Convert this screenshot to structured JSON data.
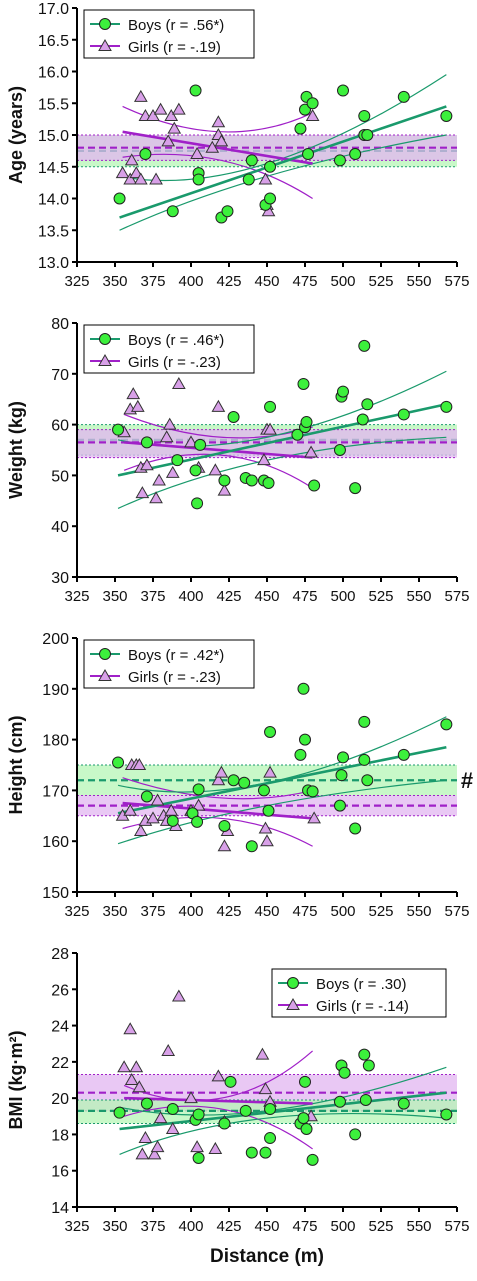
{
  "colors": {
    "boys": "#1a9a6c",
    "boys_fill": "#3cf03c",
    "girls": "#a020c8",
    "girls_fill": "#d8a0e8",
    "band_green": "#b6f5b6",
    "band_purple": "#e2b5f0"
  },
  "x_axis_label": "Distance (m)",
  "chart_data": [
    {
      "type": "scatter",
      "ylabel": "Age (years)",
      "xlim": [
        325,
        575
      ],
      "ylim": [
        13.0,
        17.0
      ],
      "xticks": [
        "325",
        "350",
        "375",
        "400",
        "425",
        "450",
        "475",
        "500",
        "525",
        "550",
        "575"
      ],
      "yticks": [
        "13.0",
        "13.5",
        "14.0",
        "14.5",
        "15.0",
        "15.5",
        "16.0",
        "16.5",
        "17.0"
      ],
      "legend": [
        "Boys (r = .56*)",
        "Girls (r = -.19)"
      ],
      "legend_position": "top-left",
      "marker": "",
      "boys_points": [
        [
          353,
          14.0
        ],
        [
          370,
          14.7
        ],
        [
          388,
          13.8
        ],
        [
          403,
          15.7
        ],
        [
          405,
          14.4
        ],
        [
          405,
          14.3
        ],
        [
          420,
          13.7
        ],
        [
          424,
          13.8
        ],
        [
          438,
          14.3
        ],
        [
          440,
          14.6
        ],
        [
          449,
          13.9
        ],
        [
          452,
          14.0
        ],
        [
          452,
          14.5
        ],
        [
          472,
          15.1
        ],
        [
          475,
          15.4
        ],
        [
          476,
          15.6
        ],
        [
          477,
          14.7
        ],
        [
          480,
          15.5
        ],
        [
          498,
          14.6
        ],
        [
          500,
          15.7
        ],
        [
          508,
          14.7
        ],
        [
          514,
          15.3
        ],
        [
          514,
          15.0
        ],
        [
          516,
          15.0
        ],
        [
          540,
          15.6
        ],
        [
          568,
          15.3
        ]
      ],
      "girls_points": [
        [
          355,
          14.4
        ],
        [
          360,
          14.3
        ],
        [
          361,
          14.6
        ],
        [
          364,
          14.4
        ],
        [
          367,
          15.6
        ],
        [
          367,
          14.3
        ],
        [
          370,
          15.3
        ],
        [
          375,
          15.3
        ],
        [
          377,
          14.3
        ],
        [
          380,
          15.4
        ],
        [
          385,
          14.9
        ],
        [
          387,
          15.3
        ],
        [
          389,
          15.1
        ],
        [
          392,
          15.4
        ],
        [
          404,
          14.7
        ],
        [
          414,
          14.8
        ],
        [
          418,
          15.0
        ],
        [
          418,
          15.2
        ],
        [
          420,
          14.9
        ],
        [
          449,
          14.3
        ],
        [
          450,
          13.9
        ],
        [
          451,
          13.8
        ],
        [
          480,
          15.3
        ]
      ],
      "boys_fit": [
        [
          353,
          13.7
        ],
        [
          568,
          15.45
        ]
      ],
      "boys_ci_upper": [
        [
          353,
          14.35
        ],
        [
          450,
          14.55
        ],
        [
          568,
          15.95
        ]
      ],
      "boys_ci_lower": [
        [
          353,
          13.5
        ],
        [
          450,
          14.35
        ],
        [
          568,
          15.0
        ]
      ],
      "girls_fit": [
        [
          355,
          15.05
        ],
        [
          480,
          14.55
        ]
      ],
      "girls_ci_upper": [
        [
          355,
          15.45
        ],
        [
          420,
          15.05
        ],
        [
          480,
          15.35
        ]
      ],
      "girls_ci_lower": [
        [
          355,
          14.65
        ],
        [
          420,
          14.6
        ],
        [
          480,
          14.0
        ]
      ],
      "boys_band": [
        14.5,
        15.0
      ],
      "boys_mean": 14.75,
      "girls_band": [
        14.6,
        15.0
      ],
      "girls_mean": 14.8
    },
    {
      "type": "scatter",
      "ylabel": "Weight (kg)",
      "xlim": [
        325,
        575
      ],
      "ylim": [
        30,
        80
      ],
      "xticks": [
        "325",
        "350",
        "375",
        "400",
        "425",
        "450",
        "475",
        "500",
        "525",
        "550",
        "575"
      ],
      "yticks": [
        "30",
        "40",
        "50",
        "60",
        "70",
        "80"
      ],
      "legend": [
        "Boys (r = .46*)",
        "Girls (r = -.23)"
      ],
      "legend_position": "top-left",
      "marker": "",
      "boys_points": [
        [
          352,
          59.0
        ],
        [
          371,
          56.5
        ],
        [
          391,
          53.0
        ],
        [
          403,
          51.0
        ],
        [
          404,
          44.5
        ],
        [
          406,
          56.0
        ],
        [
          422,
          49.0
        ],
        [
          428,
          61.5
        ],
        [
          436,
          49.5
        ],
        [
          440,
          49.0
        ],
        [
          448,
          49.0
        ],
        [
          451,
          48.5
        ],
        [
          452,
          63.5
        ],
        [
          470,
          58.0
        ],
        [
          474,
          68.0
        ],
        [
          475,
          59.5
        ],
        [
          476,
          60.5
        ],
        [
          481,
          48.0
        ],
        [
          498,
          55.0
        ],
        [
          499,
          65.5
        ],
        [
          500,
          66.5
        ],
        [
          508,
          47.5
        ],
        [
          513,
          61.0
        ],
        [
          514,
          75.5
        ],
        [
          516,
          64.0
        ],
        [
          540,
          62.0
        ],
        [
          568,
          63.5
        ]
      ],
      "girls_points": [
        [
          356,
          58.5
        ],
        [
          360,
          63.0
        ],
        [
          362,
          66.0
        ],
        [
          365,
          63.5
        ],
        [
          367,
          51.5
        ],
        [
          368,
          46.5
        ],
        [
          371,
          52.0
        ],
        [
          377,
          45.5
        ],
        [
          379,
          49.0
        ],
        [
          384,
          57.5
        ],
        [
          386,
          60.0
        ],
        [
          388,
          50.5
        ],
        [
          392,
          68.0
        ],
        [
          400,
          56.5
        ],
        [
          405,
          51.5
        ],
        [
          416,
          51.0
        ],
        [
          418,
          63.5
        ],
        [
          422,
          47.0
        ],
        [
          448,
          53.0
        ],
        [
          450,
          59.0
        ],
        [
          452,
          59.0
        ],
        [
          479,
          54.5
        ]
      ],
      "boys_fit": [
        [
          352,
          50.0
        ],
        [
          568,
          64.0
        ]
      ],
      "boys_ci_upper": [
        [
          352,
          57.0
        ],
        [
          450,
          57.5
        ],
        [
          568,
          70.5
        ]
      ],
      "boys_ci_lower": [
        [
          352,
          43.5
        ],
        [
          450,
          53.0
        ],
        [
          568,
          57.5
        ]
      ],
      "girls_fit": [
        [
          356,
          56.5
        ],
        [
          480,
          53.5
        ]
      ],
      "girls_ci_upper": [
        [
          356,
          62.0
        ],
        [
          420,
          57.5
        ],
        [
          480,
          59.5
        ]
      ],
      "girls_ci_lower": [
        [
          356,
          51.0
        ],
        [
          420,
          54.0
        ],
        [
          480,
          47.5
        ]
      ],
      "boys_band": [
        54.0,
        60.0
      ],
      "boys_mean": 57.0,
      "girls_band": [
        53.5,
        59.0
      ],
      "girls_mean": 56.5
    },
    {
      "type": "scatter",
      "ylabel": "Height (cm)",
      "xlim": [
        325,
        575
      ],
      "ylim": [
        150,
        200
      ],
      "xticks": [
        "325",
        "350",
        "375",
        "400",
        "425",
        "450",
        "475",
        "500",
        "525",
        "550",
        "575"
      ],
      "yticks": [
        "150",
        "160",
        "170",
        "180",
        "190",
        "200"
      ],
      "legend": [
        "Boys (r = .42*)",
        "Girls (r = -.23)"
      ],
      "legend_position": "top-left",
      "marker": "#",
      "boys_points": [
        [
          352,
          175.5
        ],
        [
          371,
          168.8
        ],
        [
          388,
          164.0
        ],
        [
          401,
          165.5
        ],
        [
          404,
          163.8
        ],
        [
          405,
          170.2
        ],
        [
          422,
          163.0
        ],
        [
          428,
          172.0
        ],
        [
          435,
          171.5
        ],
        [
          440,
          159.0
        ],
        [
          448,
          170.0
        ],
        [
          451,
          166.0
        ],
        [
          452,
          181.5
        ],
        [
          472,
          177.0
        ],
        [
          474,
          190.0
        ],
        [
          475,
          180.0
        ],
        [
          477,
          170.0
        ],
        [
          480,
          169.8
        ],
        [
          498,
          167.0
        ],
        [
          499,
          173.0
        ],
        [
          500,
          176.5
        ],
        [
          508,
          162.5
        ],
        [
          514,
          176.0
        ],
        [
          514,
          183.5
        ],
        [
          516,
          172.0
        ],
        [
          540,
          177.0
        ],
        [
          568,
          183.0
        ]
      ],
      "girls_points": [
        [
          355,
          165.0
        ],
        [
          360,
          166.0
        ],
        [
          361,
          175.0
        ],
        [
          364,
          175.0
        ],
        [
          366,
          175.0
        ],
        [
          367,
          162.0
        ],
        [
          370,
          164.0
        ],
        [
          375,
          164.5
        ],
        [
          378,
          168.0
        ],
        [
          382,
          165.0
        ],
        [
          384,
          164.0
        ],
        [
          387,
          166.0
        ],
        [
          390,
          163.0
        ],
        [
          400,
          166.0
        ],
        [
          405,
          167.0
        ],
        [
          418,
          172.0
        ],
        [
          420,
          173.5
        ],
        [
          422,
          159.0
        ],
        [
          424,
          162.0
        ],
        [
          449,
          162.5
        ],
        [
          450,
          160.0
        ],
        [
          452,
          173.5
        ],
        [
          481,
          164.5
        ]
      ],
      "boys_fit": [
        [
          352,
          165.5
        ],
        [
          568,
          178.5
        ]
      ],
      "boys_ci_upper": [
        [
          352,
          171.0
        ],
        [
          450,
          171.5
        ],
        [
          568,
          184.5
        ]
      ],
      "boys_ci_lower": [
        [
          352,
          159.5
        ],
        [
          450,
          167.0
        ],
        [
          568,
          172.0
        ]
      ],
      "girls_fit": [
        [
          355,
          167.5
        ],
        [
          480,
          164.5
        ]
      ],
      "girls_ci_upper": [
        [
          355,
          172.5
        ],
        [
          420,
          168.5
        ],
        [
          480,
          170.0
        ]
      ],
      "girls_ci_lower": [
        [
          355,
          162.5
        ],
        [
          420,
          164.5
        ],
        [
          480,
          159.0
        ]
      ],
      "boys_band": [
        169.0,
        175.0
      ],
      "boys_mean": 172.0,
      "girls_band": [
        165.0,
        169.0
      ],
      "girls_mean": 167.0
    },
    {
      "type": "scatter",
      "ylabel": "BMI (kg·m²)",
      "xlim": [
        325,
        575
      ],
      "ylim": [
        14,
        28
      ],
      "xticks": [
        "325",
        "350",
        "375",
        "400",
        "425",
        "450",
        "475",
        "500",
        "525",
        "550",
        "575"
      ],
      "yticks": [
        "14",
        "16",
        "18",
        "20",
        "22",
        "24",
        "26",
        "28"
      ],
      "legend": [
        "Boys (r = .30)",
        "Girls (r = -.14)"
      ],
      "legend_position": "top-right",
      "marker": "",
      "boys_points": [
        [
          353,
          19.2
        ],
        [
          371,
          19.7
        ],
        [
          388,
          19.4
        ],
        [
          403,
          18.8
        ],
        [
          405,
          19.1
        ],
        [
          405,
          16.7
        ],
        [
          422,
          18.6
        ],
        [
          426,
          20.9
        ],
        [
          436,
          19.3
        ],
        [
          440,
          17.0
        ],
        [
          449,
          17.0
        ],
        [
          452,
          17.8
        ],
        [
          452,
          19.4
        ],
        [
          472,
          18.6
        ],
        [
          474,
          18.9
        ],
        [
          475,
          20.9
        ],
        [
          476,
          18.3
        ],
        [
          480,
          16.6
        ],
        [
          498,
          19.8
        ],
        [
          499,
          21.8
        ],
        [
          501,
          21.4
        ],
        [
          508,
          18.0
        ],
        [
          514,
          22.4
        ],
        [
          515,
          19.9
        ],
        [
          517,
          21.8
        ],
        [
          540,
          19.7
        ],
        [
          568,
          19.1
        ]
      ],
      "girls_points": [
        [
          356,
          21.7
        ],
        [
          360,
          23.8
        ],
        [
          361,
          21.0
        ],
        [
          364,
          21.7
        ],
        [
          366,
          20.6
        ],
        [
          368,
          16.9
        ],
        [
          370,
          17.8
        ],
        [
          376,
          16.9
        ],
        [
          378,
          17.3
        ],
        [
          380,
          18.9
        ],
        [
          385,
          22.6
        ],
        [
          388,
          18.3
        ],
        [
          392,
          25.6
        ],
        [
          400,
          20.0
        ],
        [
          404,
          17.3
        ],
        [
          416,
          17.2
        ],
        [
          418,
          21.2
        ],
        [
          422,
          18.7
        ],
        [
          447,
          22.4
        ],
        [
          449,
          20.5
        ],
        [
          452,
          19.8
        ],
        [
          479,
          19.0
        ]
      ],
      "boys_fit": [
        [
          353,
          18.3
        ],
        [
          568,
          20.3
        ]
      ],
      "boys_ci_upper": [
        [
          353,
          19.5
        ],
        [
          450,
          19.3
        ],
        [
          568,
          21.7
        ]
      ],
      "boys_ci_lower": [
        [
          353,
          16.9
        ],
        [
          450,
          18.9
        ],
        [
          568,
          18.9
        ]
      ],
      "girls_fit": [
        [
          356,
          20.0
        ],
        [
          480,
          19.7
        ]
      ],
      "girls_ci_upper": [
        [
          356,
          20.7
        ],
        [
          420,
          20.0
        ],
        [
          480,
          22.6
        ]
      ],
      "girls_ci_lower": [
        [
          356,
          19.0
        ],
        [
          420,
          19.4
        ],
        [
          480,
          17.2
        ]
      ],
      "boys_band": [
        18.6,
        19.9
      ],
      "boys_mean": 19.3,
      "girls_band": [
        19.3,
        21.3
      ],
      "girls_mean": 20.3
    }
  ]
}
